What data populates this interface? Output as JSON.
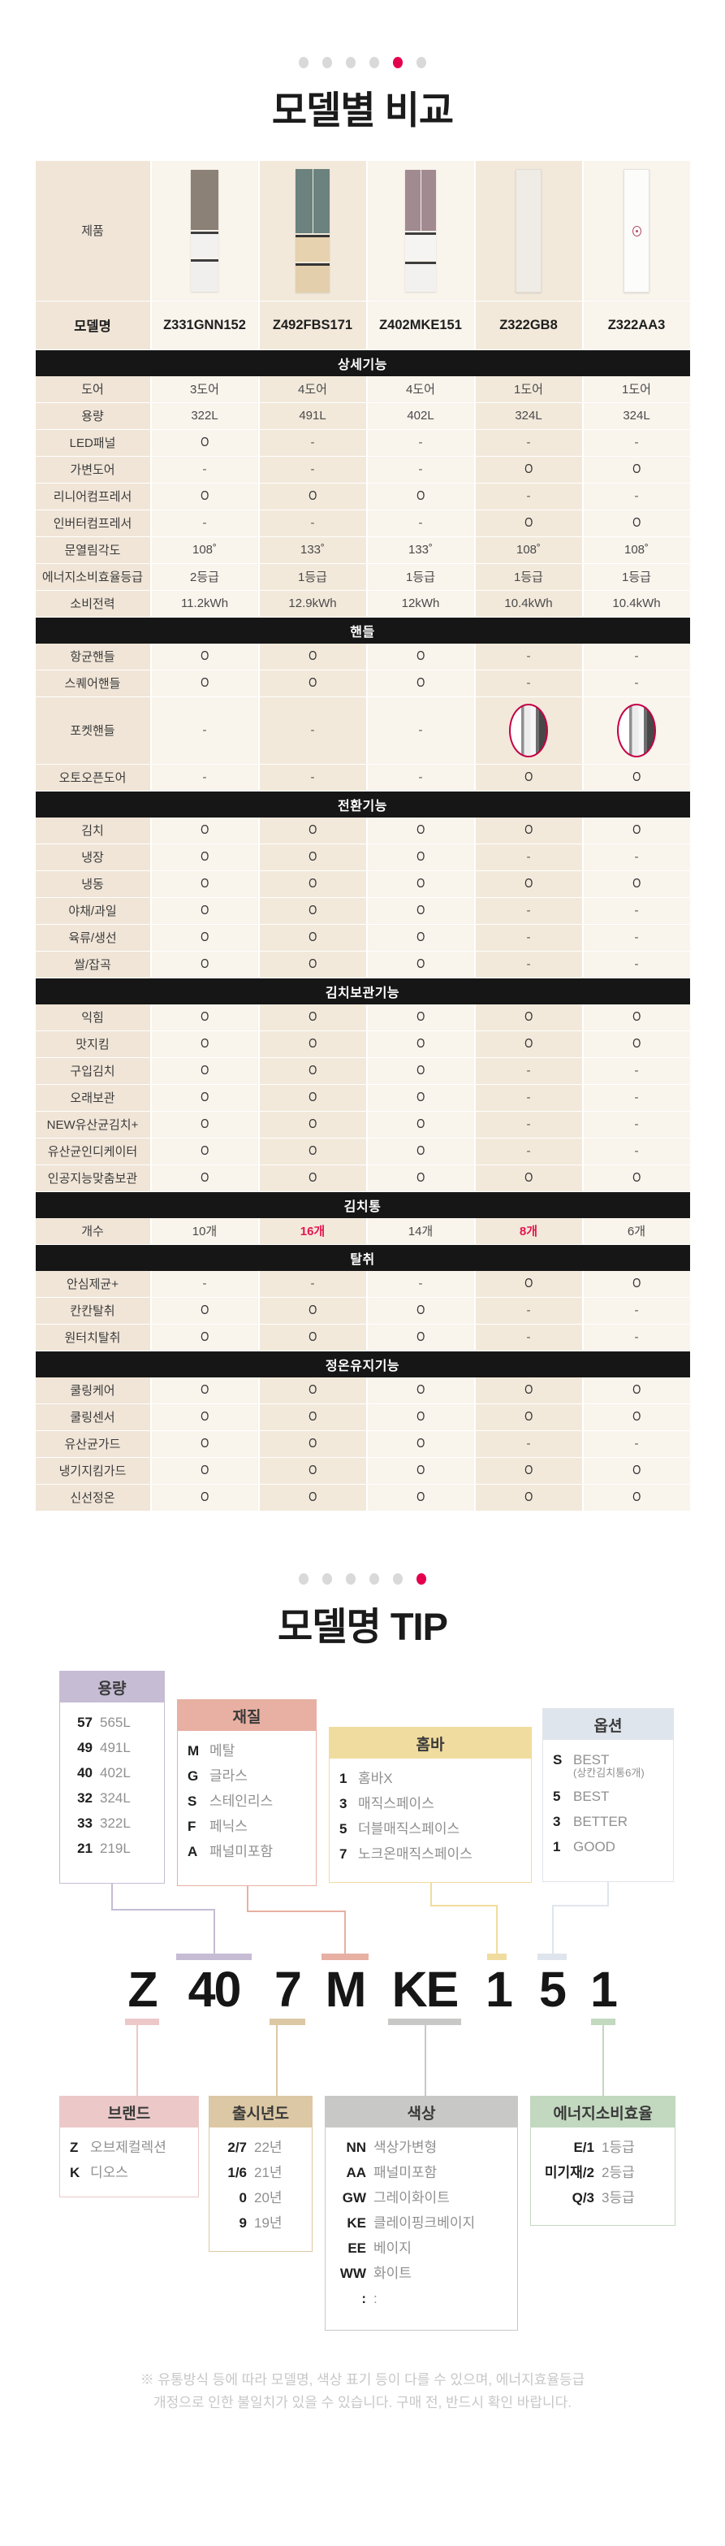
{
  "colors": {
    "accent_red": "#e4004e",
    "section_bar_bg": "#161616",
    "label_col_bg": "#f0e5d7",
    "odd_col_bg": "#f9f4ec",
    "even_col_bg": "#f2e9db"
  },
  "section1": {
    "dots_total": 6,
    "dots_active_index": 4,
    "title": "모델별 비교"
  },
  "table": {
    "product_row_label": "제품",
    "model_row_label": "모델명",
    "models": [
      "Z331GNN152",
      "Z492FBS171",
      "Z402MKE151",
      "Z322GB8",
      "Z322AA3"
    ],
    "sections": [
      {
        "header": "상세기능",
        "rows": [
          [
            "도어",
            "3도어",
            "4도어",
            "4도어",
            "1도어",
            "1도어"
          ],
          [
            "용량",
            "322L",
            "491L",
            "402L",
            "324L",
            "324L"
          ],
          [
            "LED패널",
            "O",
            "-",
            "-",
            "-",
            "-"
          ],
          [
            "가변도어",
            "-",
            "-",
            "-",
            "O",
            "O"
          ],
          [
            "리니어컴프레서",
            "O",
            "O",
            "O",
            "-",
            "-"
          ],
          [
            "인버터컴프레서",
            "-",
            "-",
            "-",
            "O",
            "O"
          ],
          [
            "문열림각도",
            "108˚",
            "133˚",
            "133˚",
            "108˚",
            "108˚"
          ],
          [
            "에너지소비효율등급",
            "2등급",
            "1등급",
            "1등급",
            "1등급",
            "1등급"
          ],
          [
            "소비전력",
            "11.2kWh",
            "12.9kWh",
            "12kWh",
            "10.4kWh",
            "10.4kWh"
          ]
        ]
      },
      {
        "header": "핸들",
        "rows": [
          [
            "항균핸들",
            "O",
            "O",
            "O",
            "-",
            "-"
          ],
          [
            "스퀘어핸들",
            "O",
            "O",
            "O",
            "-",
            "-"
          ],
          [
            "포켓핸들",
            "-",
            "-",
            "-",
            "img",
            "img"
          ],
          [
            "오토오픈도어",
            "-",
            "-",
            "-",
            "O",
            "O"
          ]
        ]
      },
      {
        "header": "전환기능",
        "rows": [
          [
            "김치",
            "O",
            "O",
            "O",
            "O",
            "O"
          ],
          [
            "냉장",
            "O",
            "O",
            "O",
            "-",
            "-"
          ],
          [
            "냉동",
            "O",
            "O",
            "O",
            "O",
            "O"
          ],
          [
            "야채/과일",
            "O",
            "O",
            "O",
            "-",
            "-"
          ],
          [
            "육류/생선",
            "O",
            "O",
            "O",
            "-",
            "-"
          ],
          [
            "쌀/잡곡",
            "O",
            "O",
            "O",
            "-",
            "-"
          ]
        ]
      },
      {
        "header": "김치보관기능",
        "rows": [
          [
            "익힘",
            "O",
            "O",
            "O",
            "O",
            "O"
          ],
          [
            "맛지킴",
            "O",
            "O",
            "O",
            "O",
            "O"
          ],
          [
            "구입김치",
            "O",
            "O",
            "O",
            "-",
            "-"
          ],
          [
            "오래보관",
            "O",
            "O",
            "O",
            "-",
            "-"
          ],
          [
            "NEW유산균김치+",
            "O",
            "O",
            "O",
            "-",
            "-"
          ],
          [
            "유산균인디케이터",
            "O",
            "O",
            "O",
            "-",
            "-"
          ],
          [
            "인공지능맞춤보관",
            "O",
            "O",
            "O",
            "O",
            "O"
          ]
        ]
      },
      {
        "header": "김치통",
        "rows": [
          [
            "개수",
            "10개",
            "red:16개",
            "14개",
            "red:8개",
            "6개"
          ]
        ]
      },
      {
        "header": "탈취",
        "rows": [
          [
            "안심제균+",
            "-",
            "-",
            "-",
            "O",
            "O"
          ],
          [
            "칸칸탈취",
            "O",
            "O",
            "O",
            "-",
            "-"
          ],
          [
            "원터치탈취",
            "O",
            "O",
            "O",
            "-",
            "-"
          ]
        ]
      },
      {
        "header": "정온유지기능",
        "rows": [
          [
            "쿨링케어",
            "O",
            "O",
            "O",
            "O",
            "O"
          ],
          [
            "쿨링센서",
            "O",
            "O",
            "O",
            "O",
            "O"
          ],
          [
            "유산균가드",
            "O",
            "O",
            "O",
            "-",
            "-"
          ],
          [
            "냉기지킴가드",
            "O",
            "O",
            "O",
            "O",
            "O"
          ],
          [
            "신선정온",
            "O",
            "O",
            "O",
            "O",
            "O"
          ]
        ]
      }
    ]
  },
  "section2": {
    "dots_total": 6,
    "dots_active_index": 5,
    "title": "모델명 TIP"
  },
  "tip": {
    "model_parts": [
      {
        "text": "Z",
        "bar": "bottom",
        "color": "pink"
      },
      {
        "text": "40",
        "bar": "top",
        "color": "purple"
      },
      {
        "text": "7",
        "bar": "bottom",
        "color": "tan"
      },
      {
        "text": "M",
        "bar": "top",
        "color": "salmon"
      },
      {
        "text": "KE",
        "bar": "bottom",
        "color": "gray"
      },
      {
        "text": "1",
        "bar": "top",
        "color": "yellow"
      },
      {
        "text": "5",
        "bar": "top",
        "color": "blue"
      },
      {
        "text": "1",
        "bar": "bottom",
        "color": "green"
      }
    ],
    "boxes": {
      "capacity": {
        "title": "용량",
        "items": [
          [
            "57",
            "565L"
          ],
          [
            "49",
            "491L"
          ],
          [
            "40",
            "402L"
          ],
          [
            "32",
            "324L"
          ],
          [
            "33",
            "322L"
          ],
          [
            "21",
            "219L"
          ]
        ]
      },
      "material": {
        "title": "재질",
        "items": [
          [
            "M",
            "메탈"
          ],
          [
            "G",
            "글라스"
          ],
          [
            "S",
            "스테인리스"
          ],
          [
            "F",
            "페닉스"
          ],
          [
            "A",
            "패널미포함"
          ]
        ]
      },
      "homebar": {
        "title": "홈바",
        "items": [
          [
            "1",
            "홈바X"
          ],
          [
            "3",
            "매직스페이스"
          ],
          [
            "5",
            "더블매직스페이스"
          ],
          [
            "7",
            "노크온매직스페이스"
          ]
        ]
      },
      "option": {
        "title": "옵션",
        "items": [
          [
            "S",
            "BEST",
            "(상칸김치통6개)"
          ],
          [
            "5",
            "BEST"
          ],
          [
            "3",
            "BETTER"
          ],
          [
            "1",
            "GOOD"
          ]
        ]
      },
      "brand": {
        "title": "브랜드",
        "items": [
          [
            "Z",
            "오브제컬렉션"
          ],
          [
            "K",
            "디오스"
          ]
        ]
      },
      "year": {
        "title": "출시년도",
        "items": [
          [
            "2/7",
            "22년"
          ],
          [
            "1/6",
            "21년"
          ],
          [
            "0",
            "20년"
          ],
          [
            "9",
            "19년"
          ]
        ]
      },
      "color": {
        "title": "색상",
        "items": [
          [
            "NN",
            "색상가변형"
          ],
          [
            "AA",
            "패널미포함"
          ],
          [
            "GW",
            "그레이화이트"
          ],
          [
            "KE",
            "클레이핑크베이지"
          ],
          [
            "EE",
            "베이지"
          ],
          [
            "WW",
            "화이트"
          ],
          [
            ":",
            ":"
          ]
        ]
      },
      "energy": {
        "title": "에너지소비효율",
        "items": [
          [
            "E/1",
            "1등급"
          ],
          [
            "미기재/2",
            "2등급"
          ],
          [
            "Q/3",
            "3등급"
          ]
        ]
      }
    }
  },
  "footnote": {
    "line1": "※ 유통방식 등에 따라 모델명, 색상 표기 등이 다를 수 있으며,  에너지효율등급",
    "line2": "개정으로 인한 불일치가 있을 수 있습니다. 구매 전, 반드시 확인 바랍니다."
  }
}
